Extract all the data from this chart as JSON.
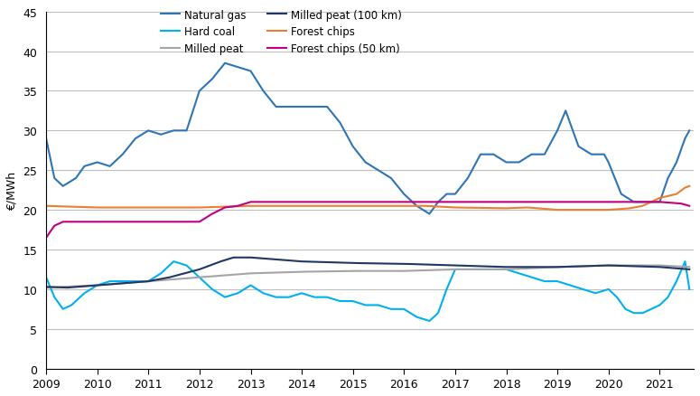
{
  "title": "",
  "ylabel": "€/MWh",
  "ylim": [
    0,
    45
  ],
  "yticks": [
    0,
    5,
    10,
    15,
    20,
    25,
    30,
    35,
    40,
    45
  ],
  "colors": {
    "natural_gas": "#2e75b6",
    "hard_coal": "#00b0f0",
    "milled_peat": "#a5a5a5",
    "milled_peat_100km": "#1f3864",
    "forest_chips": "#ed7d31",
    "forest_chips_50km": "#c00080"
  },
  "legend": {
    "natural_gas": "Natural gas",
    "hard_coal": "Hard coal",
    "milled_peat": "Milled peat",
    "milled_peat_100km": "Milled peat (100 km)",
    "forest_chips": "Forest chips",
    "forest_chips_50km": "Forest chips (50 km)"
  },
  "background_color": "#ffffff",
  "grid_color": "#bfbfbf"
}
